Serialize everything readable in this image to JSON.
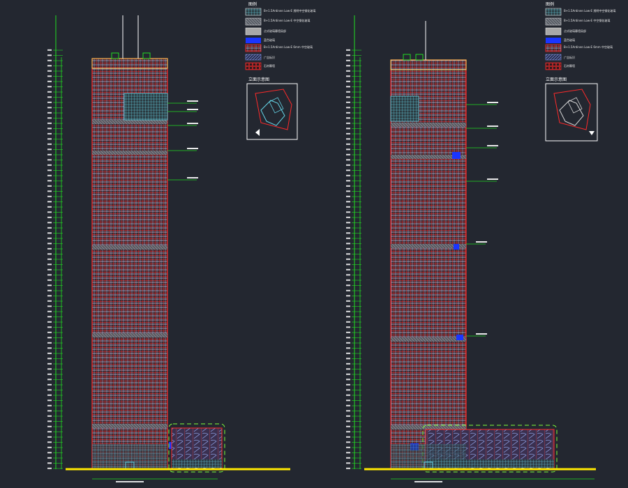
{
  "drawing": {
    "background": "#232730",
    "colors": {
      "dimension": "#22dd22",
      "curtain_wall": "#ff2a2a",
      "mullion": "#cfd8ff",
      "spandrel": "#b0b0b0",
      "glass_cyan": "#66d6e8",
      "blue_panel": "#1a35ff",
      "ground": "#ffe800",
      "podium_outline": "#7fff3a",
      "white": "#ffffff"
    },
    "elevations": [
      {
        "id": "elevation-left",
        "legend": {
          "title": "图例",
          "items": [
            {
              "label": "B+1.5Ardinen Low-E 透明中空钢化玻璃",
              "swatch": "cyan-hatch"
            },
            {
              "label": "B+1.5Ardinen Low-E 中空钢化玻璃",
              "swatch": "gray-hatch"
            },
            {
              "label": "点式玻璃幕墙局部",
              "swatch": "gray-solid"
            },
            {
              "label": "蓝色玻璃",
              "swatch": "blue"
            },
            {
              "label": "B+1.5Ardinen Low-E 6mm 中空玻璃",
              "swatch": "red-hatch"
            },
            {
              "label": "广告标识",
              "swatch": "slash-hatch"
            },
            {
              "label": "石材幕墙",
              "swatch": "red-grid"
            }
          ]
        },
        "keyplan": {
          "title": "立面示意图"
        }
      },
      {
        "id": "elevation-right",
        "legend": {
          "title": "图例",
          "items": [
            {
              "label": "B+1.5Ardinen Low-E 透明中空钢化玻璃",
              "swatch": "cyan-hatch"
            },
            {
              "label": "B+1.5Ardinen Low-E 中空钢化玻璃",
              "swatch": "gray-hatch"
            },
            {
              "label": "点式玻璃幕墙局部",
              "swatch": "gray-solid"
            },
            {
              "label": "蓝色玻璃",
              "swatch": "blue"
            },
            {
              "label": "B+1.5Ardinen Low-E 6mm 中空玻璃",
              "swatch": "red-hatch"
            },
            {
              "label": "广告标识",
              "swatch": "slash-hatch"
            },
            {
              "label": "石材幕墙",
              "swatch": "red-grid"
            }
          ]
        },
        "keyplan": {
          "title": "立面示意图"
        }
      }
    ]
  }
}
